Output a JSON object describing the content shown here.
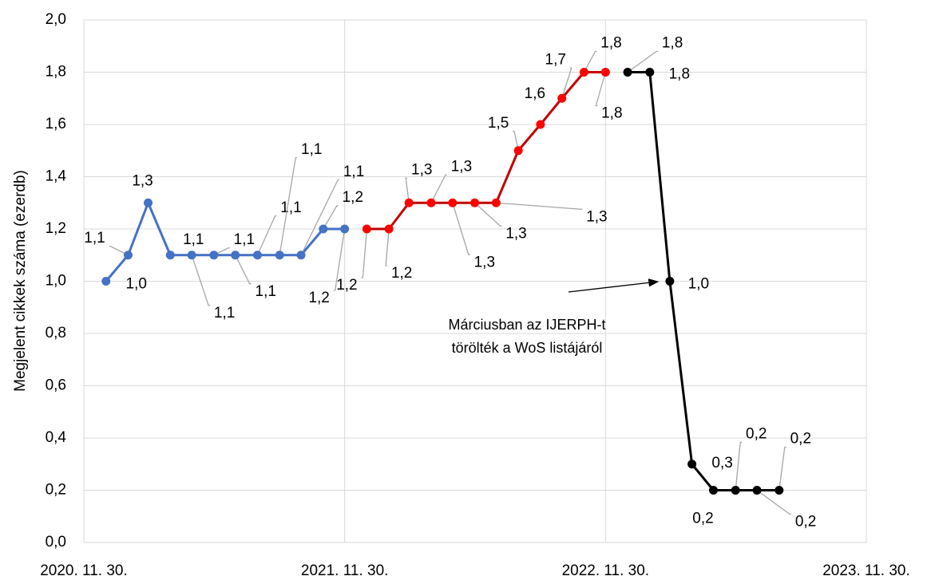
{
  "chart_data": {
    "type": "line",
    "y_label": "Megjelent cikkek száma (ezerdb)",
    "xlim": [
      "2020-11-30",
      "2023-11-30"
    ],
    "xticks": [
      {
        "value": "2020-11-30",
        "label": "2020. 11. 30."
      },
      {
        "value": "2021-11-30",
        "label": "2021. 11. 30."
      },
      {
        "value": "2022-11-30",
        "label": "2022. 11. 30."
      },
      {
        "value": "2023-11-30",
        "label": "2023. 11. 30."
      }
    ],
    "ylim": [
      0,
      2
    ],
    "yticks": [
      {
        "value": 0,
        "label": "0,0"
      },
      {
        "value": 0.2,
        "label": "0,2"
      },
      {
        "value": 0.4,
        "label": "0,4"
      },
      {
        "value": 0.6,
        "label": "0,6"
      },
      {
        "value": 0.8,
        "label": "0,8"
      },
      {
        "value": 1,
        "label": "1,0"
      },
      {
        "value": 1.2,
        "label": "1,2"
      },
      {
        "value": 1.4,
        "label": "1,4"
      },
      {
        "value": 1.6,
        "label": "1,6"
      },
      {
        "value": 1.8,
        "label": "1,8"
      },
      {
        "value": 2,
        "label": "2,0"
      }
    ],
    "grid": true,
    "series": [
      {
        "color": "#4472c4",
        "x": [
          "2020-12-31",
          "2021-01-31",
          "2021-02-28",
          "2021-03-31",
          "2021-04-30",
          "2021-05-31",
          "2021-06-30",
          "2021-07-31",
          "2021-08-31",
          "2021-09-30",
          "2021-10-31",
          "2021-11-30"
        ],
        "values": [
          1.0,
          1.1,
          1.3,
          1.1,
          1.1,
          1.1,
          1.1,
          1.1,
          1.1,
          1.1,
          1.2,
          1.2
        ],
        "value_labels": [
          "1,0",
          "1,1",
          "1,3",
          "1,1",
          "1,1",
          "1,1",
          "1,1",
          "1,1",
          "1,1",
          "1,1",
          "1,2",
          "1,2"
        ]
      },
      {
        "color": "#c00000",
        "x": [
          "2021-12-31",
          "2022-01-31",
          "2022-02-28",
          "2022-03-31",
          "2022-04-30",
          "2022-05-31",
          "2022-06-30",
          "2022-07-31",
          "2022-08-31",
          "2022-09-30",
          "2022-10-31",
          "2022-11-30"
        ],
        "values": [
          1.2,
          1.2,
          1.3,
          1.3,
          1.3,
          1.3,
          1.3,
          1.5,
          1.6,
          1.7,
          1.8,
          1.8
        ],
        "value_labels": [
          "1,2",
          "1,2",
          "1,3",
          "1,3",
          "1,3",
          "1,3",
          "1,3",
          "1,5",
          "1,6",
          "1,7",
          "1,8",
          "1,8"
        ],
        "marker_color": "#ff0000"
      },
      {
        "color": "#000000",
        "x": [
          "2022-12-31",
          "2023-01-31",
          "2023-02-28",
          "2023-03-31",
          "2023-04-30",
          "2023-05-31",
          "2023-06-30",
          "2023-07-31"
        ],
        "values": [
          1.8,
          1.8,
          1.0,
          0.3,
          0.2,
          0.2,
          0.2,
          0.2
        ],
        "value_labels": [
          "1,8",
          "1,8",
          "1,0",
          "0,3",
          "0,2",
          "0,2",
          "0,2",
          "0,2"
        ]
      }
    ],
    "annotation": {
      "lines": [
        "Márciusban az IJERPH-t",
        "törölték a WoS listájáról"
      ]
    }
  }
}
